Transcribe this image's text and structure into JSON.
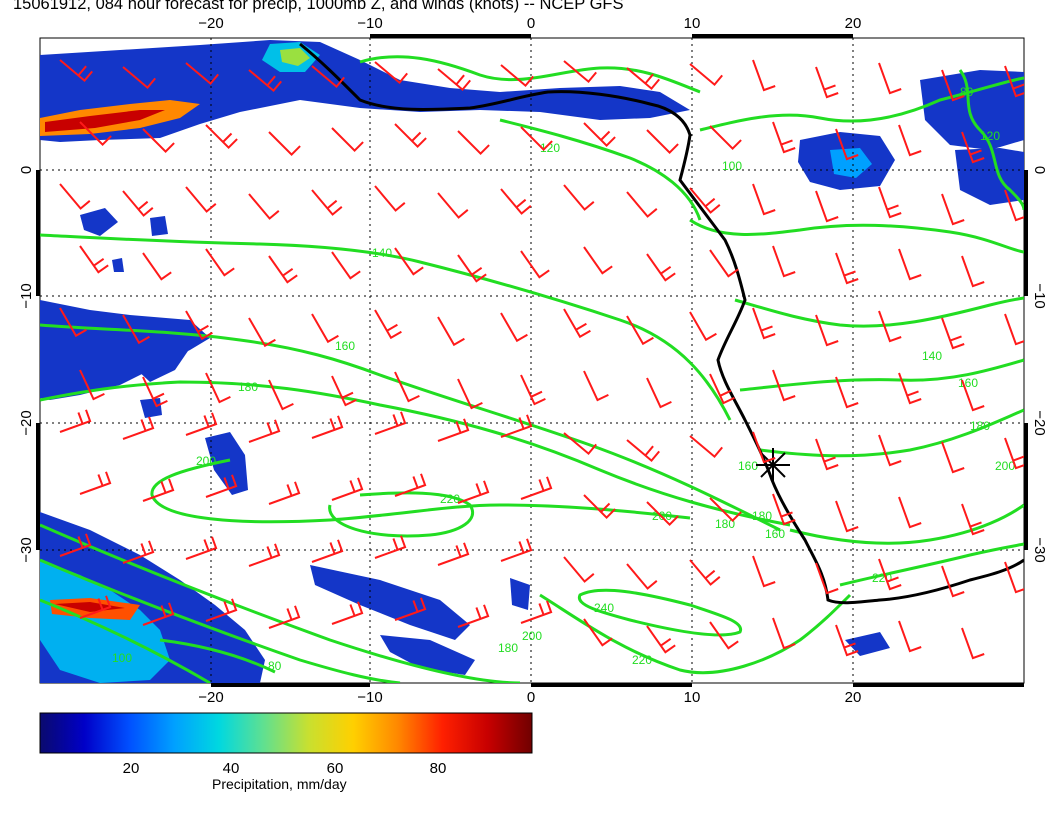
{
  "header": {
    "title": "15061912, 084 hour forecast for precip, 1000mb Z, and winds (knots) -- NCEP GFS"
  },
  "map": {
    "lon_range": [
      -31,
      31
    ],
    "lat_range": [
      -40,
      10
    ],
    "lon_gridlines": [
      -20,
      -10,
      0,
      10,
      20
    ],
    "lat_gridlines": [
      0,
      -10,
      -20,
      -30
    ],
    "lon_tick_labels": [
      "−20",
      "−10",
      "0",
      "10",
      "20"
    ],
    "lat_tick_labels": [
      "0",
      "−10",
      "−20",
      "−30"
    ],
    "grid": "dotted",
    "station_marker": {
      "symbol": "asterisk",
      "lon": 15,
      "lat": -24
    },
    "colors": {
      "contour": "#22dd22",
      "wind_barb": "#ff1a1a",
      "coastline": "#000000",
      "grid": "#000000"
    },
    "contour_labels": [
      "120",
      "140",
      "160",
      "180",
      "200",
      "220",
      "240",
      "200",
      "180",
      "160",
      "180",
      "200",
      "220",
      "100",
      "80",
      "160",
      "180",
      "200",
      "220",
      "140",
      "160",
      "180",
      "120",
      "100",
      "80"
    ]
  },
  "colorbar": {
    "title": "Precipitation, mm/day",
    "tick_labels": [
      "20",
      "40",
      "60",
      "80"
    ],
    "range": [
      0,
      98
    ],
    "colors": [
      "#0a0a6e",
      "#0000c8",
      "#0050ff",
      "#00a0ff",
      "#00d8e0",
      "#60e090",
      "#c8e030",
      "#ffd000",
      "#ff8800",
      "#ff2000",
      "#c80000",
      "#700000"
    ]
  }
}
